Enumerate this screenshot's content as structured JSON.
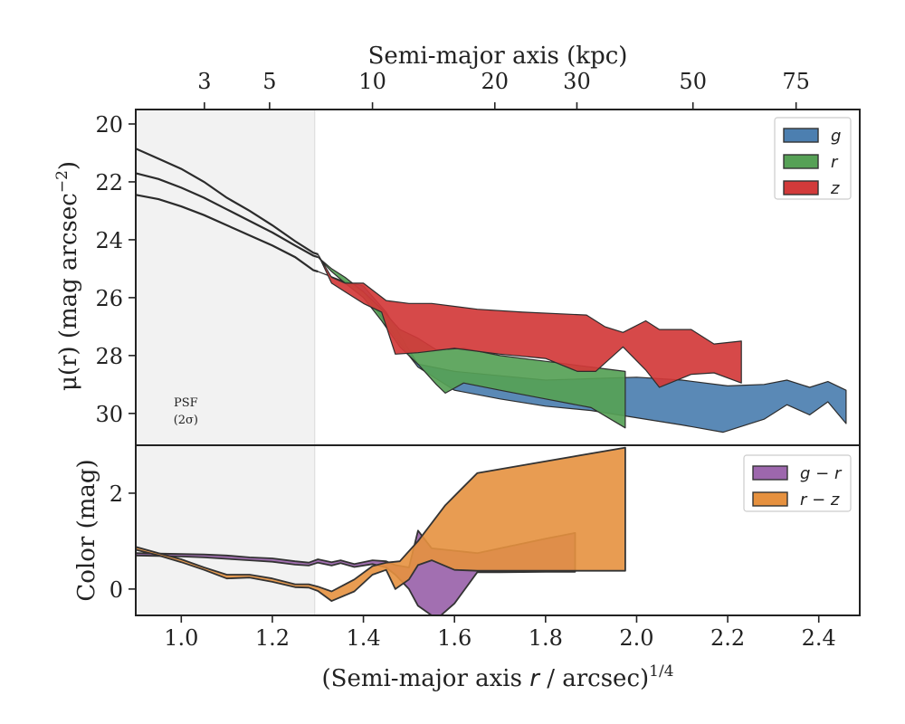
{
  "chart_data": [
    {
      "type": "area",
      "panel": "top",
      "xlabel_top": "Semi-major axis (kpc)",
      "top_axis_ticks": [
        {
          "label": "3",
          "x": 1.0508
        },
        {
          "label": "5",
          "x": 1.1939
        },
        {
          "label": "10",
          "x": 1.4199
        },
        {
          "label": "20",
          "x": 1.6886
        },
        {
          "label": "30",
          "x": 1.8688
        },
        {
          "label": "50",
          "x": 2.1237
        },
        {
          "label": "75",
          "x": 2.3502
        }
      ],
      "ylabel": "μ(r) (mag arcsec⁻²)",
      "ylabel_parts": {
        "pre": "μ(r) (mag arcsec",
        "sup": "−2",
        "post": ")"
      },
      "xlim": [
        0.9,
        2.49
      ],
      "ylim": [
        31.1,
        19.5
      ],
      "y_ticks": [
        20,
        22,
        24,
        26,
        28,
        30
      ],
      "psf_label": [
        "PSF",
        "(2σ)"
      ],
      "psf_x": 1.293,
      "legend": {
        "position": "top-right",
        "entries": [
          "g",
          "r",
          "z"
        ]
      },
      "colors": {
        "g": "#4c7fb0",
        "r": "#56a156",
        "z": "#d23a3a",
        "psf_shade": "#f2f2f2"
      },
      "series": [
        {
          "name": "g",
          "x": [
            0.9,
            0.95,
            1.0,
            1.05,
            1.1,
            1.15,
            1.2,
            1.25,
            1.29,
            1.3
          ],
          "y": [
            22.45,
            22.6,
            22.85,
            23.15,
            23.5,
            23.85,
            24.2,
            24.6,
            25.05,
            25.1
          ],
          "upper": {
            "x": [
              1.3,
              1.35,
              1.4,
              1.45,
              1.5,
              1.52,
              1.6,
              1.7,
              1.8,
              1.9,
              2.0,
              2.1,
              2.2,
              2.28,
              2.33,
              2.38,
              2.42,
              2.46
            ],
            "y": [
              25.1,
              25.4,
              25.6,
              26.5,
              27.8,
              28.3,
              28.55,
              28.7,
              28.85,
              28.8,
              28.75,
              28.85,
              29.05,
              29.0,
              28.85,
              29.1,
              28.9,
              29.2
            ]
          },
          "lower": {
            "x": [
              1.3,
              1.35,
              1.4,
              1.45,
              1.5,
              1.52,
              1.6,
              1.7,
              1.8,
              1.9,
              2.0,
              2.1,
              2.19,
              2.28,
              2.33,
              2.38,
              2.42,
              2.46
            ],
            "y": [
              25.1,
              25.4,
              25.8,
              26.9,
              28.0,
              28.4,
              29.2,
              29.5,
              29.75,
              29.9,
              30.15,
              30.4,
              30.65,
              30.2,
              29.7,
              30.05,
              29.6,
              30.35
            ]
          }
        },
        {
          "name": "r",
          "x": [
            0.9,
            0.95,
            1.0,
            1.05,
            1.1,
            1.15,
            1.2,
            1.25,
            1.29,
            1.3
          ],
          "y": [
            21.7,
            21.9,
            22.2,
            22.55,
            22.95,
            23.35,
            23.75,
            24.2,
            24.55,
            24.6
          ],
          "upper": {
            "x": [
              1.3,
              1.33,
              1.36,
              1.4,
              1.44,
              1.48,
              1.52,
              1.56,
              1.62,
              1.7,
              1.8,
              1.9,
              1.975
            ],
            "y": [
              24.6,
              25.0,
              25.3,
              25.8,
              26.4,
              27.1,
              27.4,
              27.8,
              27.75,
              28.0,
              28.2,
              28.4,
              28.55
            ]
          },
          "lower": {
            "x": [
              1.3,
              1.33,
              1.36,
              1.4,
              1.44,
              1.48,
              1.52,
              1.56,
              1.58,
              1.62,
              1.7,
              1.8,
              1.9,
              1.975
            ],
            "y": [
              24.6,
              25.1,
              25.5,
              26.0,
              26.8,
              27.7,
              28.3,
              29.0,
              29.3,
              28.95,
              29.2,
              29.5,
              29.8,
              30.5
            ]
          }
        },
        {
          "name": "z",
          "x": [
            0.9,
            0.95,
            1.0,
            1.05,
            1.1,
            1.15,
            1.2,
            1.25,
            1.29,
            1.3
          ],
          "y": [
            20.85,
            21.2,
            21.55,
            22.0,
            22.55,
            23.0,
            23.5,
            24.05,
            24.45,
            24.5
          ],
          "upper": {
            "x": [
              1.3,
              1.33,
              1.36,
              1.4,
              1.45,
              1.5,
              1.55,
              1.65,
              1.75,
              1.89,
              1.93,
              1.97,
              2.02,
              2.05,
              2.12,
              2.17,
              2.23
            ],
            "y": [
              24.5,
              25.3,
              25.5,
              25.5,
              26.1,
              26.2,
              26.2,
              26.4,
              26.5,
              26.6,
              27.0,
              27.2,
              26.8,
              27.1,
              27.1,
              27.6,
              27.5
            ]
          },
          "lower": {
            "x": [
              1.3,
              1.33,
              1.36,
              1.4,
              1.44,
              1.47,
              1.52,
              1.6,
              1.7,
              1.8,
              1.87,
              1.91,
              1.97,
              2.02,
              2.05,
              2.12,
              2.17,
              2.23
            ],
            "y": [
              24.5,
              25.5,
              25.8,
              26.2,
              26.5,
              27.95,
              27.9,
              27.75,
              27.95,
              28.1,
              28.55,
              28.55,
              27.7,
              28.5,
              29.1,
              28.65,
              28.6,
              28.95
            ]
          }
        }
      ]
    },
    {
      "type": "area",
      "panel": "bottom",
      "xlabel_parts": {
        "pre": "(Semi-major axis ",
        "italic": "r",
        "mid": " / arcsec)",
        "sup": "1/4"
      },
      "ylabel": "Color (mag)",
      "xlim": [
        0.9,
        2.49
      ],
      "ylim": [
        -0.55,
        3.0
      ],
      "x_ticks": [
        1.0,
        1.2,
        1.4,
        1.6,
        1.8,
        2.0,
        2.2,
        2.4
      ],
      "y_ticks": [
        0,
        2
      ],
      "legend": {
        "position": "top-right",
        "entries": [
          "g − r",
          "r − z"
        ]
      },
      "colors": {
        "g - r": "#9d67ad",
        "r - z": "#e6913f"
      },
      "series": [
        {
          "name": "g − r",
          "upper": {
            "x": [
              0.9,
              0.95,
              1.0,
              1.05,
              1.1,
              1.15,
              1.2,
              1.25,
              1.28,
              1.3,
              1.33,
              1.35,
              1.38,
              1.42,
              1.45,
              1.47,
              1.5,
              1.52,
              1.55,
              1.65,
              1.7,
              1.8,
              1.865
            ],
            "y": [
              0.75,
              0.74,
              0.73,
              0.72,
              0.7,
              0.66,
              0.64,
              0.58,
              0.55,
              0.62,
              0.56,
              0.6,
              0.52,
              0.6,
              0.58,
              0.5,
              0.45,
              1.22,
              0.85,
              0.75,
              0.85,
              1.05,
              1.17
            ]
          },
          "lower": {
            "x": [
              0.9,
              0.95,
              1.0,
              1.05,
              1.1,
              1.15,
              1.2,
              1.25,
              1.28,
              1.3,
              1.33,
              1.35,
              1.38,
              1.42,
              1.45,
              1.47,
              1.5,
              1.52,
              1.55,
              1.57,
              1.6,
              1.65,
              1.7,
              1.8,
              1.865
            ],
            "y": [
              0.7,
              0.69,
              0.68,
              0.66,
              0.63,
              0.6,
              0.57,
              0.51,
              0.49,
              0.55,
              0.49,
              0.54,
              0.46,
              0.52,
              0.45,
              0.3,
              0.0,
              -0.35,
              -0.55,
              -0.55,
              -0.3,
              0.35,
              0.35,
              0.36,
              0.36
            ]
          }
        },
        {
          "name": "r − z",
          "upper": {
            "x": [
              0.9,
              0.95,
              1.0,
              1.05,
              1.1,
              1.15,
              1.2,
              1.25,
              1.28,
              1.3,
              1.33,
              1.38,
              1.42,
              1.45,
              1.48,
              1.52,
              1.58,
              1.65,
              1.975
            ],
            "y": [
              0.88,
              0.75,
              0.62,
              0.45,
              0.3,
              0.3,
              0.22,
              0.1,
              0.1,
              0.05,
              -0.05,
              0.2,
              0.48,
              0.55,
              0.58,
              1.0,
              1.75,
              2.42,
              2.95
            ]
          },
          "lower": {
            "x": [
              0.9,
              0.95,
              1.0,
              1.05,
              1.1,
              1.15,
              1.2,
              1.25,
              1.28,
              1.3,
              1.33,
              1.38,
              1.42,
              1.45,
              1.47,
              1.5,
              1.52,
              1.55,
              1.6,
              1.65,
              1.975
            ],
            "y": [
              0.82,
              0.7,
              0.56,
              0.4,
              0.22,
              0.24,
              0.15,
              0.04,
              0.03,
              -0.04,
              -0.25,
              -0.05,
              0.3,
              0.4,
              0.0,
              0.2,
              0.5,
              0.6,
              0.4,
              0.38,
              0.38
            ]
          }
        }
      ]
    }
  ]
}
